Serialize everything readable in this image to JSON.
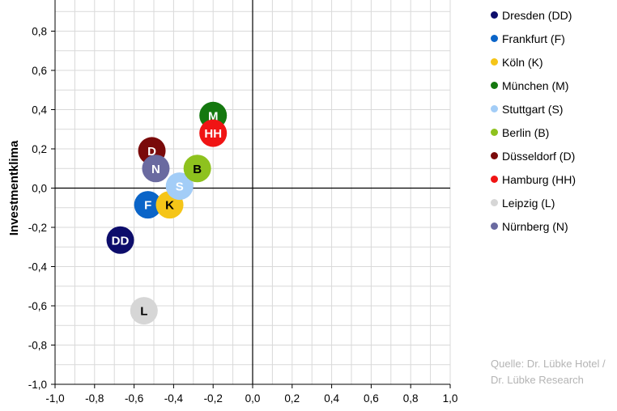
{
  "chart_data": {
    "type": "scatter",
    "title": "",
    "xlabel": "",
    "ylabel": "Investmentklima",
    "xlim": [
      -1.0,
      1.0
    ],
    "ylim": [
      -1.0,
      1.0
    ],
    "grid": true,
    "legend_position": "right",
    "x_ticks": [
      "-1,0",
      "-0,8",
      "-0,6",
      "-0,4",
      "-0,2",
      "0,0",
      "0,2",
      "0,4",
      "0,6",
      "0,8",
      "1,0"
    ],
    "y_ticks": [
      "-1,0",
      "-0,8",
      "-0,6",
      "-0,4",
      "-0,2",
      "0,0",
      "0,2",
      "0,4",
      "0,6",
      "0,8"
    ],
    "series": [
      {
        "name": "Dresden (DD)",
        "label": "DD",
        "x": -0.67,
        "y": -0.265,
        "color": "#0d0d6b",
        "text_color": "#ffffff"
      },
      {
        "name": "Frankfurt (F)",
        "label": "F",
        "x": -0.53,
        "y": -0.085,
        "color": "#0a64c8",
        "text_color": "#ffffff"
      },
      {
        "name": "Köln (K)",
        "label": "K",
        "x": -0.42,
        "y": -0.085,
        "color": "#f5c518",
        "text_color": "#000000"
      },
      {
        "name": "München (M)",
        "label": "M",
        "x": -0.2,
        "y": 0.37,
        "color": "#14780f",
        "text_color": "#ffffff"
      },
      {
        "name": "Stuttgart (S)",
        "label": "S",
        "x": -0.37,
        "y": 0.01,
        "color": "#a3cdf7",
        "text_color": "#ffffff"
      },
      {
        "name": "Berlin (B)",
        "label": "B",
        "x": -0.28,
        "y": 0.1,
        "color": "#8ec21e",
        "text_color": "#000000"
      },
      {
        "name": "Düsseldorf (D)",
        "label": "D",
        "x": -0.51,
        "y": 0.19,
        "color": "#7a0a0a",
        "text_color": "#ffffff"
      },
      {
        "name": "Hamburg (HH)",
        "label": "HH",
        "x": -0.2,
        "y": 0.28,
        "color": "#f01414",
        "text_color": "#ffffff"
      },
      {
        "name": "Leipzig (L)",
        "label": "L",
        "x": -0.55,
        "y": -0.625,
        "color": "#d6d6d6",
        "text_color": "#000000"
      },
      {
        "name": "Nürnberg (N)",
        "label": "N",
        "x": -0.49,
        "y": 0.1,
        "color": "#6a6aa0",
        "text_color": "#ffffff"
      }
    ],
    "source_lines": [
      "Quelle: Dr. Lübke Hotel /",
      "Dr. Lübke Research"
    ]
  }
}
